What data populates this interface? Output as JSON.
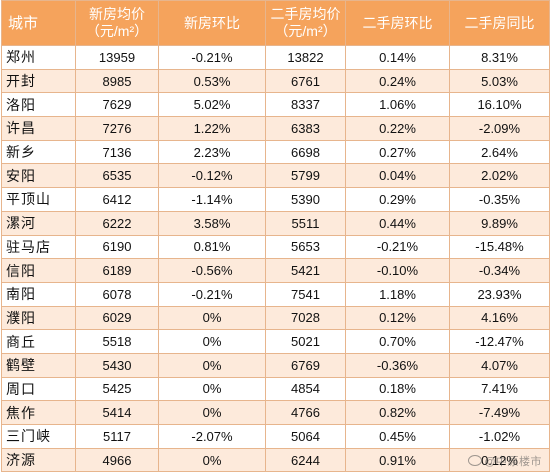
{
  "table": {
    "headers": [
      {
        "line1": "城市",
        "line2": ""
      },
      {
        "line1": "新房均价",
        "line2": "（元/m²）"
      },
      {
        "line1": "新房环比",
        "line2": ""
      },
      {
        "line1": "二手房均价",
        "line2": "（元/m²）"
      },
      {
        "line1": "二手房环比",
        "line2": ""
      },
      {
        "line1": "二手房同比",
        "line2": ""
      }
    ],
    "rows": [
      [
        "郑州",
        "13959",
        "-0.21%",
        "13822",
        "0.14%",
        "8.31%"
      ],
      [
        "开封",
        "8985",
        "0.53%",
        "6761",
        "0.24%",
        "5.03%"
      ],
      [
        "洛阳",
        "7629",
        "5.02%",
        "8337",
        "1.06%",
        "16.10%"
      ],
      [
        "许昌",
        "7276",
        "1.22%",
        "6383",
        "0.22%",
        "-2.09%"
      ],
      [
        "新乡",
        "7136",
        "2.23%",
        "6698",
        "0.27%",
        "2.64%"
      ],
      [
        "安阳",
        "6535",
        "-0.12%",
        "5799",
        "0.04%",
        "2.02%"
      ],
      [
        "平顶山",
        "6412",
        "-1.14%",
        "5390",
        "0.29%",
        "-0.35%"
      ],
      [
        "漯河",
        "6222",
        "3.58%",
        "5511",
        "0.44%",
        "9.89%"
      ],
      [
        "驻马店",
        "6190",
        "0.81%",
        "5653",
        "-0.21%",
        "-15.48%"
      ],
      [
        "信阳",
        "6189",
        "-0.56%",
        "5421",
        "-0.10%",
        "-0.34%"
      ],
      [
        "南阳",
        "6078",
        "-0.21%",
        "7541",
        "1.18%",
        "23.93%"
      ],
      [
        "濮阳",
        "6029",
        "0%",
        "7028",
        "0.12%",
        "4.16%"
      ],
      [
        "商丘",
        "5518",
        "0%",
        "5021",
        "0.70%",
        "-12.47%"
      ],
      [
        "鹤壁",
        "5430",
        "0%",
        "6769",
        "-0.36%",
        "4.07%"
      ],
      [
        "周口",
        "5425",
        "0%",
        "4854",
        "0.18%",
        "7.41%"
      ],
      [
        "焦作",
        "5414",
        "0%",
        "4766",
        "0.82%",
        "-7.49%"
      ],
      [
        "三门峡",
        "5117",
        "-2.07%",
        "5064",
        "0.45%",
        "-1.02%"
      ],
      [
        "济源",
        "4966",
        "0%",
        "6244",
        "0.91%",
        "0.12%"
      ]
    ]
  },
  "watermark": {
    "text": "@中原楼市"
  },
  "colors": {
    "header_bg": "#f5a35c",
    "stripe_bg": "#fdeadb",
    "border": "#e7b58d"
  }
}
